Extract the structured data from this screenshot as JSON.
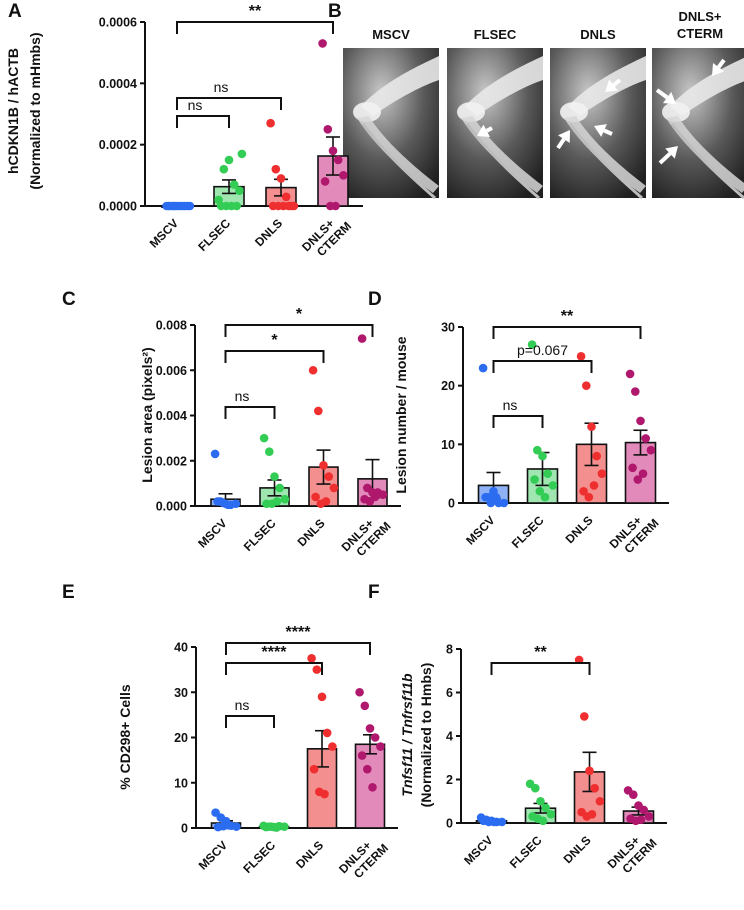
{
  "figure": {
    "panel_b": {
      "label": "B",
      "images": [
        {
          "title": "MSCV",
          "arrows": 0
        },
        {
          "title": "FLSEC",
          "arrows": 1
        },
        {
          "title": "DNLS",
          "arrows": 3
        },
        {
          "title_lines": [
            "DNLS+",
            "CTERM"
          ],
          "arrows": 3
        }
      ]
    }
  },
  "chart_data": [
    {
      "panel": "A",
      "type": "bar",
      "ylabel_lines": [
        "hCDKN1B / hACTB",
        "(Normalized to mHmbs)"
      ],
      "ylim": [
        0,
        0.0006
      ],
      "yticks": [
        0,
        0.0002,
        0.0004,
        0.0006
      ],
      "ytick_labels": [
        "0.0000",
        "0.0002",
        "0.0004",
        "0.0006"
      ],
      "categories": [
        "MSCV",
        "FLSEC",
        "DNLS",
        "DNLS+\nCTERM"
      ],
      "values": [
        1e-06,
        6.3e-05,
        6e-05,
        0.000163
      ],
      "sem": [
        0.0,
        2.2e-05,
        2.7e-05,
        6.2e-05
      ],
      "points": [
        [
          0,
          0,
          0,
          0,
          0,
          0,
          0,
          0,
          0,
          0,
          0,
          0
        ],
        [
          2e-05,
          0.00012,
          0.00015,
          7e-05,
          5e-05,
          0,
          0,
          0,
          0,
          0.00017
        ],
        [
          0.00027,
          0.00012,
          9e-05,
          3e-05,
          0,
          0,
          0,
          0,
          0,
          0
        ],
        [
          0.00053,
          0.00025,
          0.00018,
          0.00015,
          0.0001,
          8e-05,
          0,
          0
        ]
      ],
      "colors": [
        "#2b6cf0",
        "#33cc55",
        "#ef2f2f",
        "#b0186e"
      ],
      "fills": [
        "#8fb2f7",
        "#9fe6b1",
        "#f48f8f",
        "#e28bbb"
      ],
      "comparisons": [
        {
          "from": 0,
          "to": 1,
          "label": "ns"
        },
        {
          "from": 0,
          "to": 2,
          "label": "ns"
        },
        {
          "from": 0,
          "to": 3,
          "label": "**"
        }
      ]
    },
    {
      "panel": "C",
      "type": "bar",
      "ylabel": "Lesion area (pixels²)",
      "ylim": [
        0,
        0.008
      ],
      "yticks": [
        0,
        0.002,
        0.004,
        0.006,
        0.008
      ],
      "ytick_labels": [
        "0.000",
        "0.002",
        "0.004",
        "0.006",
        "0.008"
      ],
      "categories": [
        "MSCV",
        "FLSEC",
        "DNLS",
        "DNLS+\nCTERM"
      ],
      "values": [
        0.0003,
        0.0008,
        0.00172,
        0.0012
      ],
      "sem": [
        0.00024,
        0.00035,
        0.00075,
        0.00085
      ],
      "points": [
        [
          0.0023,
          0.0002,
          0.0001,
          5e-05,
          0.0001,
          0.0002,
          0.00015,
          5e-05
        ],
        [
          0.003,
          0.0024,
          0.0013,
          0.0008,
          0.0003,
          0.0001,
          0.0001,
          0.0002
        ],
        [
          0.006,
          0.0042,
          0.0018,
          0.0013,
          0.0008,
          0.0004,
          0.0001,
          0.0002
        ],
        [
          0.0074,
          0.0008,
          0.0006,
          0.0006,
          0.0005,
          0.0003,
          0.0002,
          0.0004
        ]
      ],
      "colors": [
        "#2b6cf0",
        "#33cc55",
        "#ef2f2f",
        "#b0186e"
      ],
      "fills": [
        "#8fb2f7",
        "#9fe6b1",
        "#f48f8f",
        "#e28bbb"
      ],
      "comparisons": [
        {
          "from": 0,
          "to": 1,
          "label": "ns"
        },
        {
          "from": 0,
          "to": 2,
          "label": "*"
        },
        {
          "from": 0,
          "to": 3,
          "label": "*"
        }
      ]
    },
    {
      "panel": "D",
      "type": "bar",
      "ylabel": "Lesion number / mouse",
      "ylim": [
        0,
        30
      ],
      "yticks": [
        0,
        10,
        20,
        30
      ],
      "ytick_labels": [
        "0",
        "10",
        "20",
        "30"
      ],
      "categories": [
        "MSCV",
        "FLSEC",
        "DNLS",
        "DNLS+\nCTERM"
      ],
      "values": [
        3,
        5.8,
        10,
        10.3
      ],
      "sem": [
        2.2,
        2.8,
        3.6,
        2.1
      ],
      "points": [
        [
          23,
          1,
          2,
          0,
          0,
          1,
          0,
          1
        ],
        [
          27,
          9,
          8,
          5,
          3,
          4,
          2,
          1
        ],
        [
          25,
          20,
          13,
          8,
          5,
          2,
          1,
          3
        ],
        [
          22,
          19,
          14,
          11,
          9,
          6,
          4,
          5
        ]
      ],
      "colors": [
        "#2b6cf0",
        "#33cc55",
        "#ef2f2f",
        "#b0186e"
      ],
      "fills": [
        "#8fb2f7",
        "#9fe6b1",
        "#f48f8f",
        "#e28bbb"
      ],
      "comparisons": [
        {
          "from": 0,
          "to": 1,
          "label": "ns"
        },
        {
          "from": 0,
          "to": 2,
          "label": "p=0.067"
        },
        {
          "from": 0,
          "to": 3,
          "label": "**"
        }
      ]
    },
    {
      "panel": "E",
      "type": "bar",
      "ylabel": "% CD298+ Cells",
      "ylim": [
        0,
        40
      ],
      "yticks": [
        0,
        10,
        20,
        30,
        40
      ],
      "ytick_labels": [
        "0",
        "10",
        "20",
        "30",
        "40"
      ],
      "categories": [
        "MSCV",
        "FLSEC",
        "DNLS",
        "DNLS+\nCTERM"
      ],
      "values": [
        1.1,
        0.3,
        17.5,
        18.5
      ],
      "sem": [
        0.5,
        0.1,
        4.0,
        2.1
      ],
      "points": [
        [
          3.4,
          2.3,
          1.5,
          0.5,
          0.3,
          0.2,
          0.4,
          0.6
        ],
        [
          0.5,
          0.3,
          0.2,
          0.4,
          0.3,
          0.2,
          0.3,
          0.1
        ],
        [
          37.5,
          35,
          29,
          21,
          18,
          13,
          8,
          7.5
        ],
        [
          30,
          27,
          22,
          20,
          18,
          16,
          13,
          9
        ]
      ],
      "colors": [
        "#2b6cf0",
        "#33cc55",
        "#ef2f2f",
        "#b0186e"
      ],
      "fills": [
        "#8fb2f7",
        "#9fe6b1",
        "#f48f8f",
        "#e28bbb"
      ],
      "comparisons": [
        {
          "from": 0,
          "to": 1,
          "label": "ns"
        },
        {
          "from": 0,
          "to": 2,
          "label": "****"
        },
        {
          "from": 0,
          "to": 3,
          "label": "****"
        }
      ]
    },
    {
      "panel": "F",
      "type": "bar",
      "ylabel_lines": [
        "Tnfsf11 / Tnfrsf11b",
        "(Normalized to Hmbs)"
      ],
      "ylim": [
        0,
        8
      ],
      "yticks": [
        0,
        2,
        4,
        6,
        8
      ],
      "ytick_labels": [
        "0",
        "2",
        "4",
        "6",
        "8"
      ],
      "categories": [
        "MSCV",
        "FLSEC",
        "DNLS",
        "DNLS+\nCTERM"
      ],
      "values": [
        0.1,
        0.68,
        2.35,
        0.55
      ],
      "sem": [
        0.05,
        0.22,
        0.9,
        0.18
      ],
      "points": [
        [
          0.25,
          0.15,
          0.1,
          0.05,
          0.05,
          0.1,
          0.05,
          0.05
        ],
        [
          1.8,
          1.6,
          1.0,
          0.7,
          0.4,
          0.3,
          0.2,
          0.1
        ],
        [
          7.5,
          4.9,
          2.4,
          1.6,
          1.0,
          0.5,
          0.3,
          0.4
        ],
        [
          1.5,
          1.3,
          0.8,
          0.6,
          0.3,
          0.2,
          0.1,
          0.15
        ]
      ],
      "colors": [
        "#2b6cf0",
        "#33cc55",
        "#ef2f2f",
        "#b0186e"
      ],
      "fills": [
        "#8fb2f7",
        "#9fe6b1",
        "#f48f8f",
        "#e28bbb"
      ],
      "comparisons": [
        {
          "from": 0,
          "to": 2,
          "label": "**"
        }
      ]
    }
  ]
}
